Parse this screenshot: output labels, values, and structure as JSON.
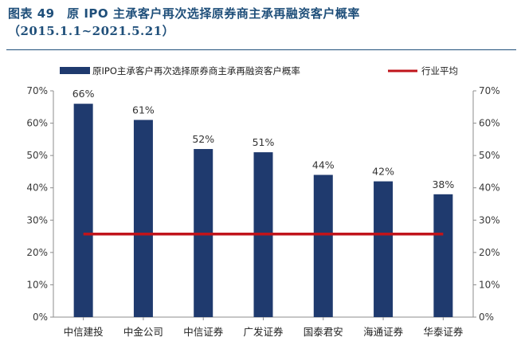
{
  "header": {
    "title_line1": "图表 49　原 IPO 主承客户再次选择原券商主承再融资客户概率",
    "title_line2": "（2015.1.1~2021.5.21）"
  },
  "colors": {
    "bar": "#1f3a6e",
    "average_line": "#c0141b",
    "title": "#1f4f7a",
    "axis": "#8c8c8c"
  },
  "chart_data": {
    "type": "bar",
    "categories": [
      "中信建投",
      "中金公司",
      "中信证券",
      "广发证券",
      "国泰君安",
      "海通证券",
      "华泰证券"
    ],
    "series": [
      {
        "name": "原IPO主承客户再次选择原券商主承再融资客户概率",
        "values": [
          66,
          61,
          52,
          51,
          44,
          42,
          38
        ],
        "labels": [
          "66%",
          "61%",
          "52%",
          "51%",
          "44%",
          "42%",
          "38%"
        ]
      },
      {
        "name": "行业平均",
        "type": "line",
        "value": 25.7
      }
    ],
    "ylim": [
      0,
      70
    ],
    "yticks": [
      "0%",
      "10%",
      "20%",
      "30%",
      "40%",
      "50%",
      "60%",
      "70%"
    ],
    "y2ticks": [
      "0%",
      "10%",
      "20%",
      "30%",
      "40%",
      "50%",
      "60%",
      "70%"
    ],
    "legend_position": "top",
    "grid": false
  }
}
